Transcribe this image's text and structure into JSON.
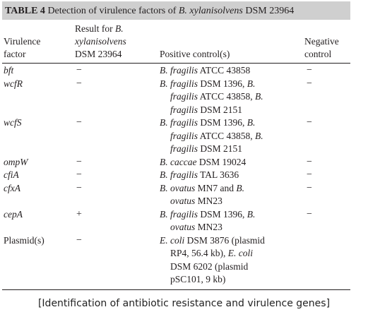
{
  "title": {
    "label": "TABLE 4",
    "text": "Detection of virulence factors of",
    "organism": "B. xylanisolvens",
    "strain": "DSM 23964"
  },
  "headers": {
    "virulence_factor": [
      "Virulence",
      "factor"
    ],
    "result": [
      "Result for",
      "B.",
      "xylanisolvens",
      "DSM 23964"
    ],
    "positive_control": "Positive control(s)",
    "negative_control": [
      "Negative",
      "control"
    ]
  },
  "rows": [
    {
      "factor": "bft",
      "result": "−",
      "positive_lines": [
        [
          {
            "t": "B. fragilis",
            "i": true
          },
          {
            "t": " ATCC 43858",
            "i": false
          }
        ]
      ],
      "negative": "−"
    },
    {
      "factor": "wcfR",
      "result": "−",
      "positive_lines": [
        [
          {
            "t": "B. fragilis",
            "i": true
          },
          {
            "t": " DSM 1396, ",
            "i": false
          },
          {
            "t": "B.",
            "i": true
          }
        ],
        [
          {
            "t": "fragilis",
            "i": true
          },
          {
            "t": " ATCC 43858, ",
            "i": false
          },
          {
            "t": "B.",
            "i": true
          }
        ],
        [
          {
            "t": "fragilis",
            "i": true
          },
          {
            "t": " DSM 2151",
            "i": false
          }
        ]
      ],
      "negative": "−"
    },
    {
      "factor": "wcfS",
      "result": "−",
      "positive_lines": [
        [
          {
            "t": "B. fragilis",
            "i": true
          },
          {
            "t": " DSM 1396, ",
            "i": false
          },
          {
            "t": "B.",
            "i": true
          }
        ],
        [
          {
            "t": "fragilis",
            "i": true
          },
          {
            "t": " ATCC 43858, ",
            "i": false
          },
          {
            "t": "B.",
            "i": true
          }
        ],
        [
          {
            "t": "fragilis",
            "i": true
          },
          {
            "t": " DSM 2151",
            "i": false
          }
        ]
      ],
      "negative": "−"
    },
    {
      "factor": "ompW",
      "result": "−",
      "positive_lines": [
        [
          {
            "t": "B. caccae",
            "i": true
          },
          {
            "t": " DSM 19024",
            "i": false
          }
        ]
      ],
      "negative": "−"
    },
    {
      "factor": "cfiA",
      "result": "−",
      "positive_lines": [
        [
          {
            "t": "B. fragilis",
            "i": true
          },
          {
            "t": " TAL 3636",
            "i": false
          }
        ]
      ],
      "negative": "−"
    },
    {
      "factor": "cfxA",
      "result": "−",
      "positive_lines": [
        [
          {
            "t": "B. ovatus",
            "i": true
          },
          {
            "t": " MN7 and ",
            "i": false
          },
          {
            "t": "B.",
            "i": true
          }
        ],
        [
          {
            "t": "ovatus",
            "i": true
          },
          {
            "t": " MN23",
            "i": false
          }
        ]
      ],
      "negative": "−"
    },
    {
      "factor": "cepA",
      "result": "+",
      "positive_lines": [
        [
          {
            "t": "B. fragilis",
            "i": true
          },
          {
            "t": " DSM 1396, ",
            "i": false
          },
          {
            "t": "B.",
            "i": true
          }
        ],
        [
          {
            "t": "ovatus",
            "i": true
          },
          {
            "t": " MN23",
            "i": false
          }
        ]
      ],
      "negative": "−"
    },
    {
      "factor": "Plasmid(s)",
      "result": "−",
      "positive_lines": [
        [
          {
            "t": "E. coli",
            "i": true
          },
          {
            "t": " DSM 3876 (plasmid",
            "i": false
          }
        ],
        [
          {
            "t": "RP4, 56.4 kb), ",
            "i": false
          },
          {
            "t": "E. coli",
            "i": true
          }
        ],
        [
          {
            "t": "DSM 6202 (plasmid",
            "i": false
          }
        ],
        [
          {
            "t": "pSC101, 9 kb)",
            "i": false
          }
        ]
      ],
      "negative": ""
    }
  ],
  "caption": "[Identification of antibiotic resistance and virulence genes]"
}
